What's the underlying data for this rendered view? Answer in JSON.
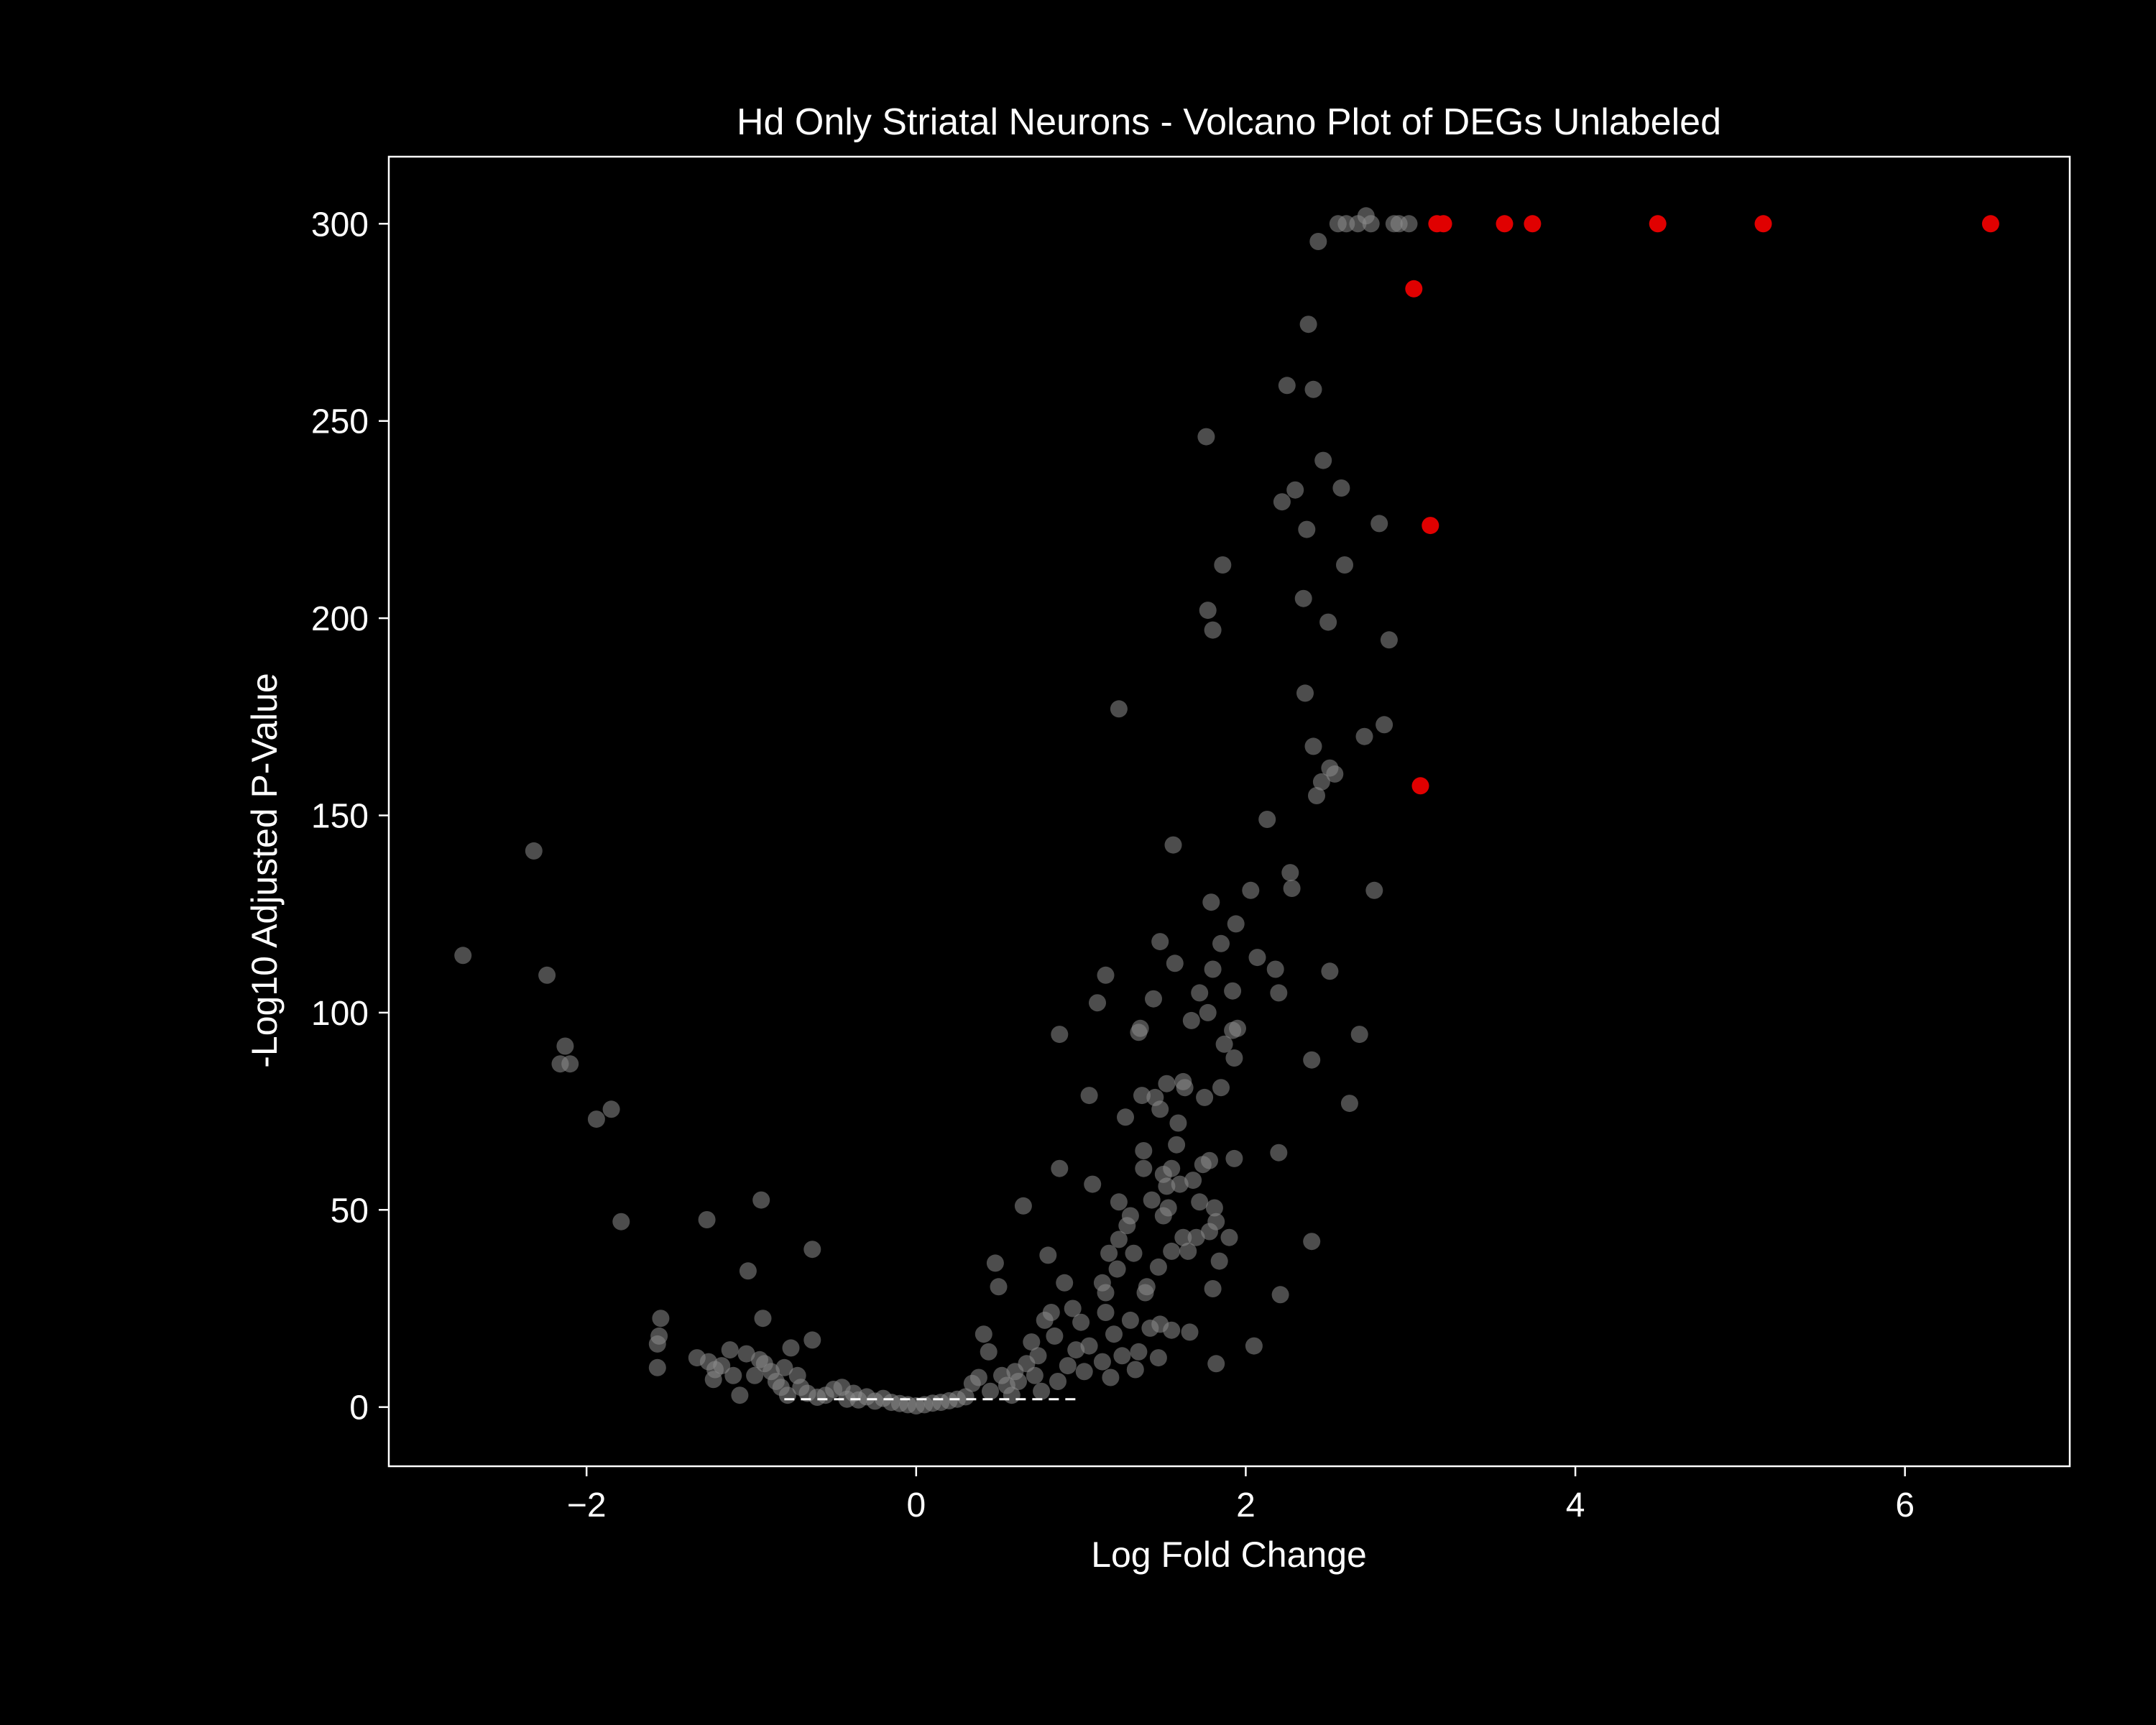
{
  "chart_data": {
    "type": "scatter",
    "title": "Hd Only Striatal Neurons - Volcano Plot of DEGs Unlabeled",
    "xlabel": "Log Fold Change",
    "ylabel": "-Log10 Adjusted P-Value",
    "xlim": [
      -3.2,
      7.0
    ],
    "ylim": [
      -15,
      317
    ],
    "xticks": [
      -2,
      0,
      2,
      4,
      6
    ],
    "xtick_labels": [
      "−2",
      "0",
      "2",
      "4",
      "6"
    ],
    "yticks": [
      0,
      50,
      100,
      150,
      200,
      250,
      300
    ],
    "ytick_labels": [
      "0",
      "50",
      "100",
      "150",
      "200",
      "250",
      "300"
    ],
    "grid": false,
    "colors": {
      "background": "#000000",
      "axes": "#ffffff",
      "non_significant": "#8c8c8c",
      "significant": "#e00000"
    },
    "threshold_line": {
      "y": 2.0,
      "x_range": [
        -0.8,
        1.0
      ],
      "style": "dashed"
    },
    "series": [
      {
        "name": "not significant",
        "color": "#8c8c8c",
        "alpha": 0.55,
        "points": [
          [
            -2.75,
            114.5
          ],
          [
            -2.32,
            141
          ],
          [
            -2.24,
            109.5
          ],
          [
            -2.16,
            87
          ],
          [
            -2.13,
            91.5
          ],
          [
            -2.1,
            87
          ],
          [
            -1.94,
            73
          ],
          [
            -1.85,
            75.5
          ],
          [
            -1.79,
            47
          ],
          [
            -1.57,
            10
          ],
          [
            -1.57,
            16
          ],
          [
            -1.56,
            18
          ],
          [
            -1.55,
            22.5
          ],
          [
            -1.33,
            12.5
          ],
          [
            -1.27,
            47.5
          ],
          [
            -1.26,
            11.5
          ],
          [
            -1.23,
            7
          ],
          [
            -1.22,
            9.5
          ],
          [
            -1.18,
            10.5
          ],
          [
            -1.13,
            14.5
          ],
          [
            -1.11,
            8
          ],
          [
            -1.07,
            3
          ],
          [
            -1.03,
            13.5
          ],
          [
            -1.02,
            34.5
          ],
          [
            -0.98,
            8
          ],
          [
            -0.95,
            12
          ],
          [
            -0.94,
            52.5
          ],
          [
            -0.93,
            22.5
          ],
          [
            -0.92,
            11
          ],
          [
            -0.88,
            9
          ],
          [
            -0.85,
            6.5
          ],
          [
            -0.82,
            5
          ],
          [
            -0.8,
            10
          ],
          [
            -0.78,
            3
          ],
          [
            -0.76,
            15
          ],
          [
            -0.72,
            8
          ],
          [
            -0.7,
            5
          ],
          [
            -0.66,
            3.5
          ],
          [
            -0.63,
            40
          ],
          [
            -0.63,
            17
          ],
          [
            -0.6,
            2.5
          ],
          [
            -0.55,
            3
          ],
          [
            -0.5,
            4.5
          ],
          [
            -0.45,
            5
          ],
          [
            -0.42,
            2
          ],
          [
            -0.38,
            3.5
          ],
          [
            -0.35,
            1.8
          ],
          [
            -0.3,
            2.6
          ],
          [
            -0.25,
            1.5
          ],
          [
            -0.2,
            2.2
          ],
          [
            -0.15,
            1.2
          ],
          [
            -0.1,
            0.9
          ],
          [
            -0.05,
            0.6
          ],
          [
            0.0,
            0.3
          ],
          [
            0.05,
            0.6
          ],
          [
            0.1,
            1.0
          ],
          [
            0.15,
            1.2
          ],
          [
            0.2,
            1.6
          ],
          [
            0.25,
            2.0
          ],
          [
            0.3,
            2.6
          ],
          [
            0.34,
            6
          ],
          [
            0.38,
            7.5
          ],
          [
            0.41,
            18.5
          ],
          [
            0.44,
            14
          ],
          [
            0.45,
            4
          ],
          [
            0.48,
            36.5
          ],
          [
            0.5,
            30.5
          ],
          [
            0.52,
            8
          ],
          [
            0.55,
            5.5
          ],
          [
            0.58,
            3
          ],
          [
            0.6,
            9
          ],
          [
            0.62,
            6.5
          ],
          [
            0.65,
            51
          ],
          [
            0.67,
            11
          ],
          [
            0.7,
            16.5
          ],
          [
            0.72,
            8
          ],
          [
            0.74,
            13
          ],
          [
            0.76,
            4
          ],
          [
            0.78,
            22
          ],
          [
            0.8,
            38.5
          ],
          [
            0.82,
            24
          ],
          [
            0.84,
            18
          ],
          [
            0.86,
            6.5
          ],
          [
            0.87,
            60.5
          ],
          [
            0.87,
            94.5
          ],
          [
            0.9,
            31.5
          ],
          [
            0.92,
            10.5
          ],
          [
            0.95,
            25
          ],
          [
            0.97,
            14.5
          ],
          [
            1.0,
            21.5
          ],
          [
            1.02,
            9
          ],
          [
            1.05,
            15.5
          ],
          [
            1.05,
            79
          ],
          [
            1.07,
            56.5
          ],
          [
            1.1,
            102.5
          ],
          [
            1.13,
            11.5
          ],
          [
            1.13,
            31.5
          ],
          [
            1.15,
            29
          ],
          [
            1.15,
            24
          ],
          [
            1.15,
            109.5
          ],
          [
            1.17,
            39
          ],
          [
            1.18,
            7.5
          ],
          [
            1.2,
            18.5
          ],
          [
            1.22,
            35
          ],
          [
            1.23,
            42.5
          ],
          [
            1.23,
            52
          ],
          [
            1.23,
            177
          ],
          [
            1.25,
            13
          ],
          [
            1.27,
            73.5
          ],
          [
            1.28,
            46
          ],
          [
            1.3,
            48.5
          ],
          [
            1.3,
            22
          ],
          [
            1.32,
            39
          ],
          [
            1.33,
            9.5
          ],
          [
            1.35,
            14
          ],
          [
            1.35,
            95
          ],
          [
            1.36,
            96
          ],
          [
            1.37,
            79
          ],
          [
            1.38,
            65
          ],
          [
            1.38,
            60.5
          ],
          [
            1.39,
            29
          ],
          [
            1.4,
            30.5
          ],
          [
            1.42,
            20
          ],
          [
            1.43,
            52.5
          ],
          [
            1.44,
            103.5
          ],
          [
            1.45,
            78.5
          ],
          [
            1.47,
            12.5
          ],
          [
            1.47,
            35.5
          ],
          [
            1.48,
            118
          ],
          [
            1.48,
            21
          ],
          [
            1.48,
            75.5
          ],
          [
            1.5,
            48.5
          ],
          [
            1.5,
            59
          ],
          [
            1.52,
            56
          ],
          [
            1.52,
            82
          ],
          [
            1.53,
            50.5
          ],
          [
            1.55,
            60.5
          ],
          [
            1.55,
            39.5
          ],
          [
            1.55,
            19.5
          ],
          [
            1.56,
            142.5
          ],
          [
            1.57,
            112.5
          ],
          [
            1.58,
            66.5
          ],
          [
            1.59,
            72
          ],
          [
            1.6,
            56.5
          ],
          [
            1.62,
            43
          ],
          [
            1.62,
            82.5
          ],
          [
            1.63,
            81
          ],
          [
            1.65,
            39.5
          ],
          [
            1.66,
            19
          ],
          [
            1.67,
            98
          ],
          [
            1.68,
            57.5
          ],
          [
            1.7,
            43
          ],
          [
            1.72,
            105
          ],
          [
            1.72,
            52
          ],
          [
            1.74,
            61.5
          ],
          [
            1.75,
            78.5
          ],
          [
            1.76,
            246
          ],
          [
            1.77,
            100
          ],
          [
            1.77,
            202
          ],
          [
            1.78,
            44.5
          ],
          [
            1.78,
            62.5
          ],
          [
            1.79,
            128
          ],
          [
            1.8,
            30
          ],
          [
            1.8,
            197
          ],
          [
            1.8,
            111
          ],
          [
            1.81,
            50.5
          ],
          [
            1.82,
            11
          ],
          [
            1.82,
            47
          ],
          [
            1.84,
            37
          ],
          [
            1.85,
            117.5
          ],
          [
            1.85,
            81
          ],
          [
            1.86,
            213.5
          ],
          [
            1.87,
            92
          ],
          [
            1.9,
            43
          ],
          [
            1.92,
            95.5
          ],
          [
            1.92,
            105.5
          ],
          [
            1.93,
            63
          ],
          [
            1.93,
            88.5
          ],
          [
            1.94,
            122.5
          ],
          [
            1.95,
            96
          ],
          [
            2.03,
            131
          ],
          [
            2.05,
            15.5
          ],
          [
            2.07,
            114
          ],
          [
            2.13,
            149
          ],
          [
            2.18,
            111
          ],
          [
            2.2,
            105
          ],
          [
            2.2,
            64.5
          ],
          [
            2.21,
            28.5
          ],
          [
            2.22,
            229.5
          ],
          [
            2.25,
            259
          ],
          [
            2.27,
            135.5
          ],
          [
            2.28,
            131.5
          ],
          [
            2.3,
            232.5
          ],
          [
            2.35,
            205
          ],
          [
            2.36,
            181
          ],
          [
            2.37,
            222.5
          ],
          [
            2.38,
            274.5
          ],
          [
            2.4,
            88
          ],
          [
            2.4,
            42
          ],
          [
            2.41,
            258
          ],
          [
            2.41,
            167.5
          ],
          [
            2.43,
            155
          ],
          [
            2.44,
            295.5
          ],
          [
            2.46,
            158.5
          ],
          [
            2.47,
            240
          ],
          [
            2.5,
            199
          ],
          [
            2.51,
            110.5
          ],
          [
            2.51,
            162
          ],
          [
            2.54,
            160.5
          ],
          [
            2.56,
            300
          ],
          [
            2.58,
            233
          ],
          [
            2.6,
            213.5
          ],
          [
            2.61,
            300
          ],
          [
            2.63,
            77
          ],
          [
            2.68,
            300
          ],
          [
            2.69,
            94.5
          ],
          [
            2.72,
            170
          ],
          [
            2.73,
            302
          ],
          [
            2.76,
            300
          ],
          [
            2.78,
            131
          ],
          [
            2.81,
            224
          ],
          [
            2.84,
            173
          ],
          [
            2.87,
            194.5
          ],
          [
            2.9,
            300
          ],
          [
            2.93,
            300
          ],
          [
            2.99,
            300
          ]
        ]
      },
      {
        "name": "significant",
        "color": "#e00000",
        "alpha": 1.0,
        "points": [
          [
            3.02,
            283.5
          ],
          [
            3.06,
            157.5
          ],
          [
            3.12,
            223.5
          ],
          [
            3.16,
            300
          ],
          [
            3.2,
            300
          ],
          [
            3.57,
            300
          ],
          [
            3.74,
            300
          ],
          [
            4.5,
            300
          ],
          [
            5.14,
            300
          ],
          [
            6.52,
            300
          ]
        ]
      }
    ]
  }
}
